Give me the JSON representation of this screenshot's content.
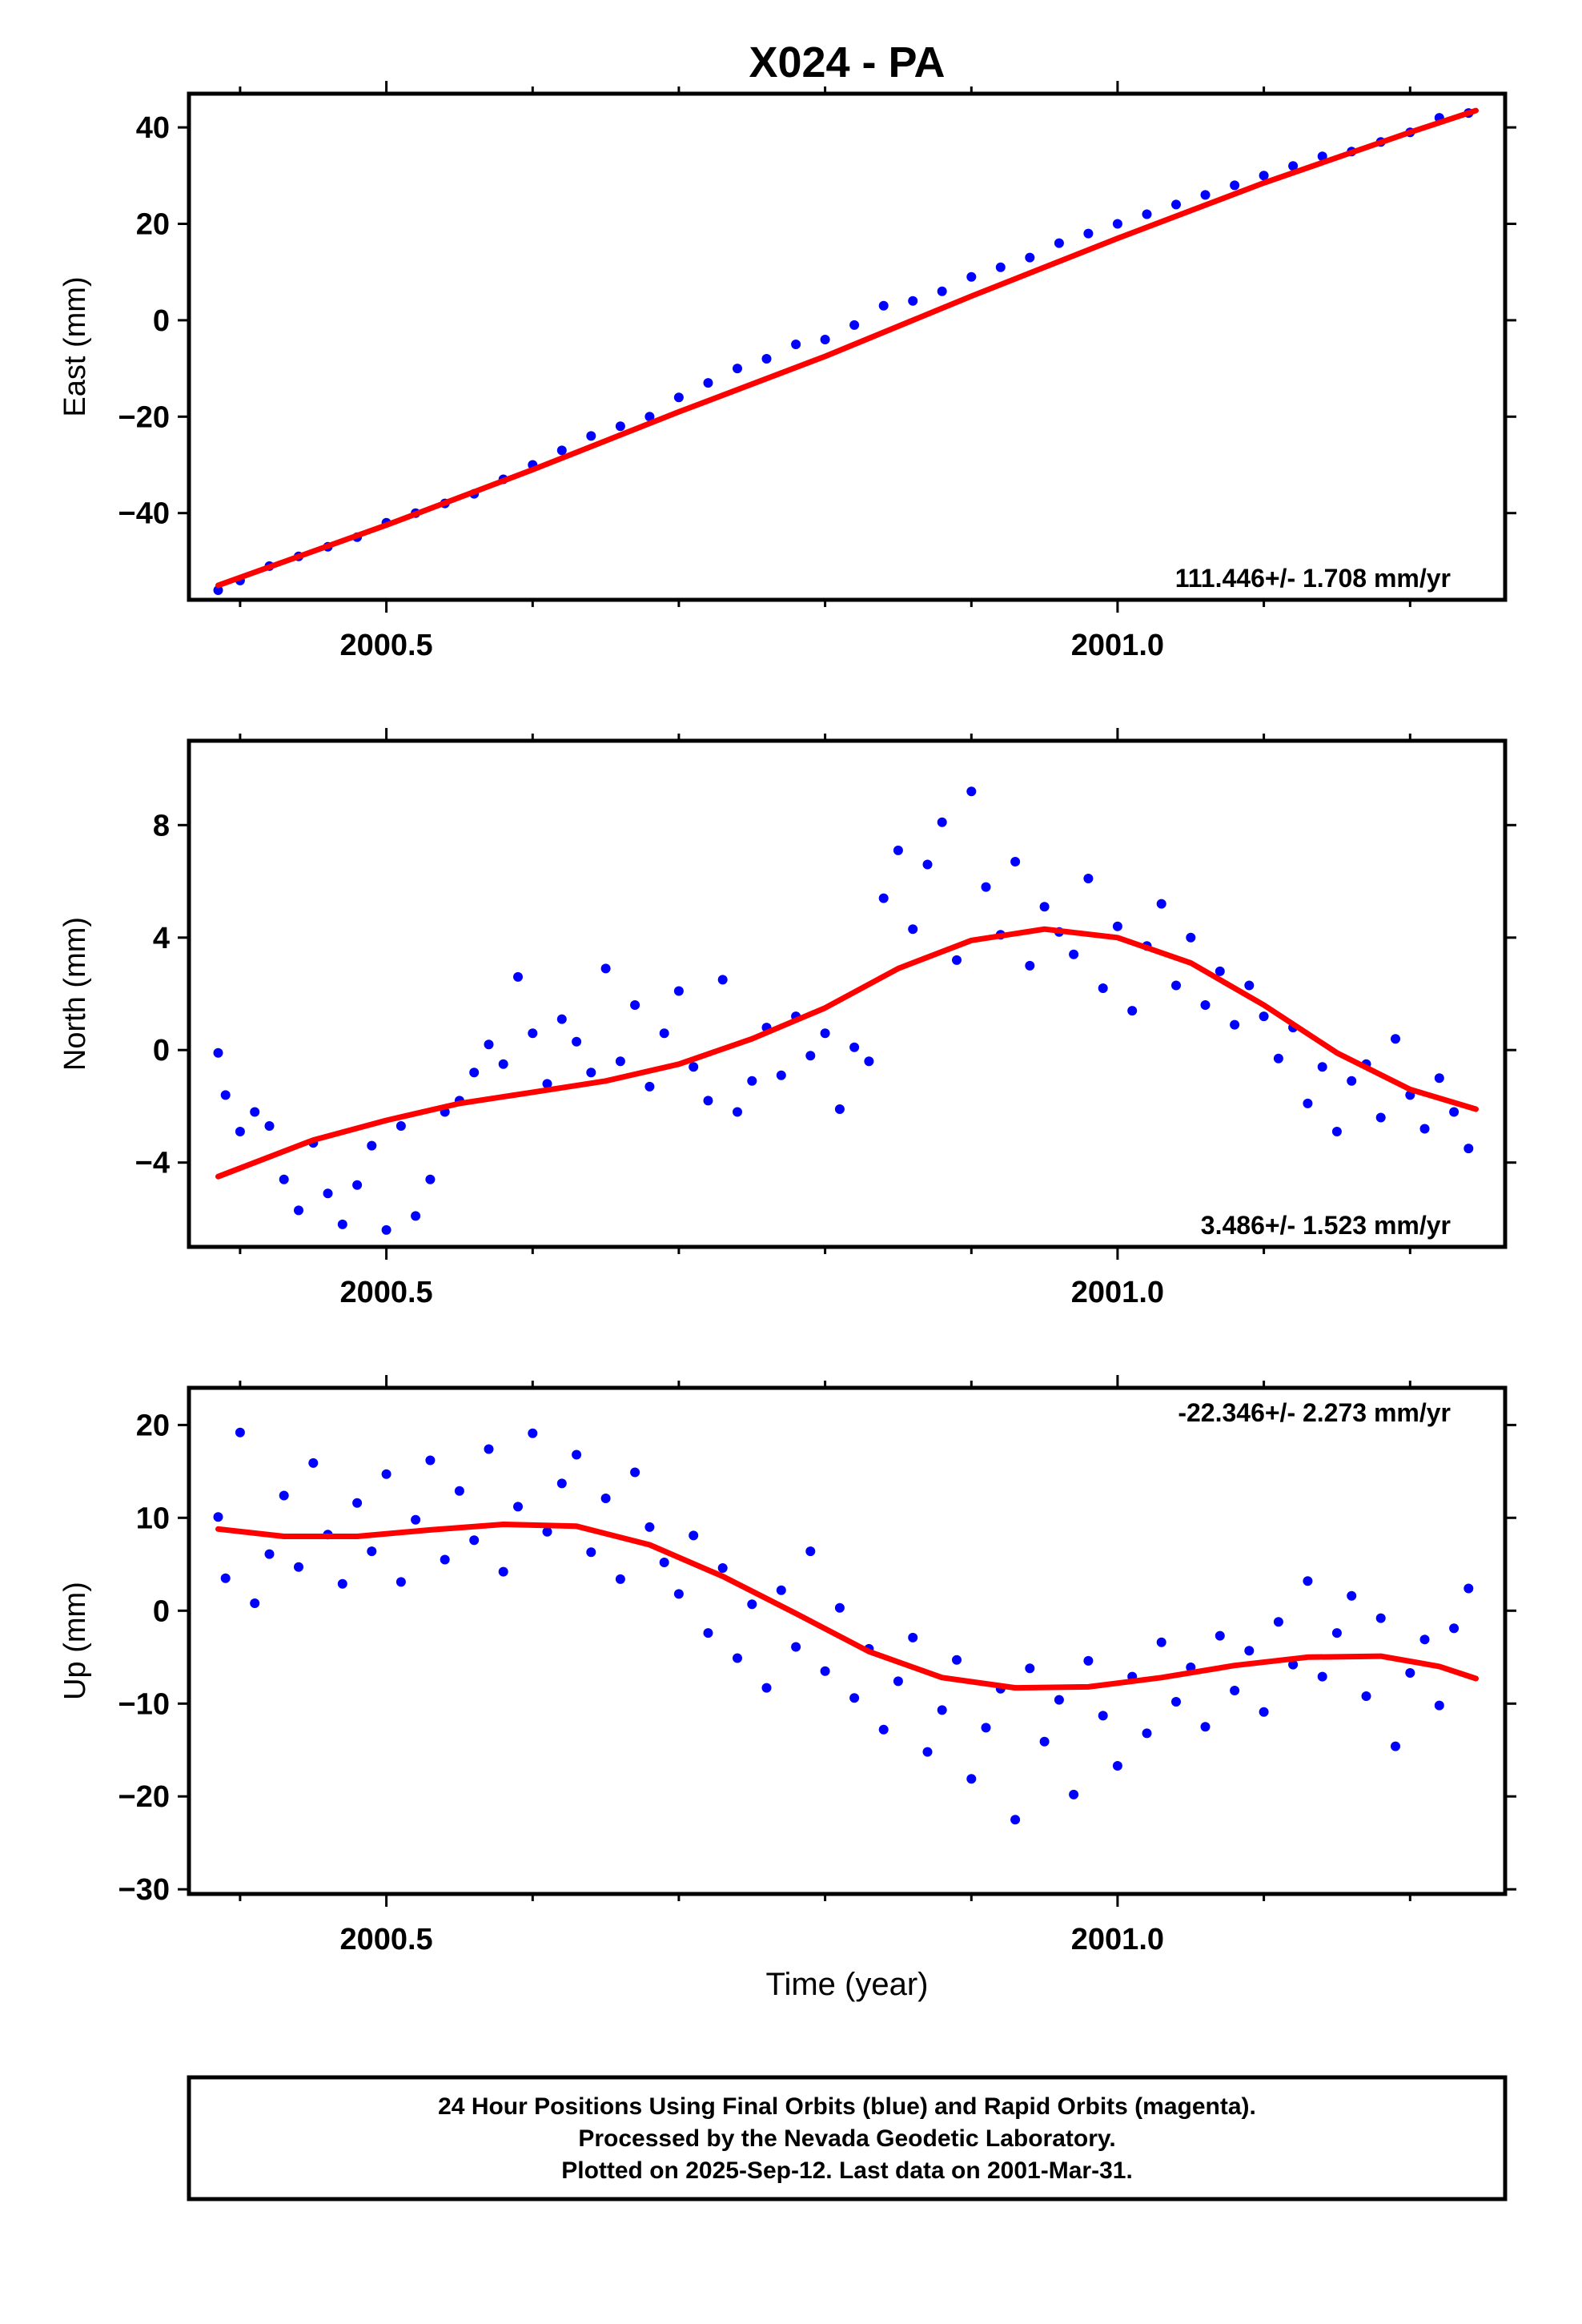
{
  "title": "X024 - PA",
  "xlabel": "Time (year)",
  "footer": {
    "line1": "24 Hour Positions Using Final Orbits (blue) and Rapid Orbits (magenta).",
    "line2": "Processed by the Nevada Geodetic Laboratory.",
    "line3": "Plotted on 2025-Sep-12. Last data on 2001-Mar-31."
  },
  "colors": {
    "points": "#0000ff",
    "fit": "#ff0000",
    "axis": "#000000"
  },
  "chart_data": [
    {
      "type": "scatter",
      "component": "East",
      "ylabel": "East (mm)",
      "rate_label": "111.446+/- 1.708 mm/yr",
      "xlim": [
        2000.365,
        2001.265
      ],
      "ylim": [
        -58,
        47
      ],
      "xticks": [
        2000.5,
        2001.0
      ],
      "yticks": [
        -40,
        -20,
        0,
        20,
        40
      ],
      "grid": false,
      "fit_curve": {
        "x": [
          2000.385,
          2000.5,
          2000.6,
          2000.7,
          2000.8,
          2000.9,
          2001.0,
          2001.1,
          2001.2,
          2001.245
        ],
        "y": [
          -55,
          -42.5,
          -31,
          -19,
          -7.5,
          5,
          17,
          28.5,
          39,
          43.5
        ]
      },
      "sample_points": {
        "x": [
          2000.385,
          2000.4,
          2000.42,
          2000.44,
          2000.46,
          2000.48,
          2000.5,
          2000.52,
          2000.54,
          2000.56,
          2000.58,
          2000.6,
          2000.62,
          2000.64,
          2000.66,
          2000.68,
          2000.7,
          2000.72,
          2000.74,
          2000.76,
          2000.78,
          2000.8,
          2000.82,
          2000.84,
          2000.86,
          2000.88,
          2000.9,
          2000.92,
          2000.94,
          2000.96,
          2000.98,
          2001.0,
          2001.02,
          2001.04,
          2001.06,
          2001.08,
          2001.1,
          2001.12,
          2001.14,
          2001.16,
          2001.18,
          2001.2,
          2001.22,
          2001.24
        ],
        "y": [
          -56,
          -54,
          -51,
          -49,
          -47,
          -45,
          -42,
          -40,
          -38,
          -36,
          -33,
          -30,
          -27,
          -24,
          -22,
          -20,
          -16,
          -13,
          -10,
          -8,
          -5,
          -4,
          -1,
          3,
          4,
          6,
          9,
          11,
          13,
          16,
          18,
          20,
          22,
          24,
          26,
          28,
          30,
          32,
          34,
          35,
          37,
          39,
          42,
          43
        ]
      }
    },
    {
      "type": "scatter",
      "component": "North",
      "ylabel": "North (mm)",
      "rate_label": "3.486+/- 1.523 mm/yr",
      "xlim": [
        2000.365,
        2001.265
      ],
      "ylim": [
        -7,
        11
      ],
      "xticks": [
        2000.5,
        2001.0
      ],
      "yticks": [
        -4,
        0,
        4,
        8
      ],
      "grid": false,
      "fit_curve": {
        "x": [
          2000.385,
          2000.45,
          2000.5,
          2000.55,
          2000.6,
          2000.65,
          2000.7,
          2000.75,
          2000.8,
          2000.85,
          2000.9,
          2000.95,
          2001.0,
          2001.05,
          2001.1,
          2001.15,
          2001.2,
          2001.245
        ],
        "y": [
          -4.5,
          -3.2,
          -2.5,
          -1.9,
          -1.5,
          -1.1,
          -0.5,
          0.4,
          1.5,
          2.9,
          3.9,
          4.3,
          4.0,
          3.1,
          1.6,
          -0.1,
          -1.4,
          -2.1
        ]
      },
      "sample_points": {
        "x": [
          2000.385,
          2000.39,
          2000.4,
          2000.41,
          2000.42,
          2000.43,
          2000.44,
          2000.45,
          2000.46,
          2000.47,
          2000.48,
          2000.49,
          2000.5,
          2000.51,
          2000.52,
          2000.53,
          2000.54,
          2000.55,
          2000.56,
          2000.57,
          2000.58,
          2000.59,
          2000.6,
          2000.61,
          2000.62,
          2000.63,
          2000.64,
          2000.65,
          2000.66,
          2000.67,
          2000.68,
          2000.69,
          2000.7,
          2000.71,
          2000.72,
          2000.73,
          2000.74,
          2000.75,
          2000.76,
          2000.77,
          2000.78,
          2000.79,
          2000.8,
          2000.81,
          2000.82,
          2000.83,
          2000.84,
          2000.85,
          2000.86,
          2000.87,
          2000.88,
          2000.89,
          2000.9,
          2000.91,
          2000.92,
          2000.93,
          2000.94,
          2000.95,
          2000.96,
          2000.97,
          2000.98,
          2000.99,
          2001.0,
          2001.01,
          2001.02,
          2001.03,
          2001.04,
          2001.05,
          2001.06,
          2001.07,
          2001.08,
          2001.09,
          2001.1,
          2001.11,
          2001.12,
          2001.13,
          2001.14,
          2001.15,
          2001.16,
          2001.17,
          2001.18,
          2001.19,
          2001.2,
          2001.21,
          2001.22,
          2001.23,
          2001.24
        ],
        "y": [
          -0.1,
          -1.6,
          -2.9,
          -2.2,
          -2.7,
          -4.6,
          -5.7,
          -3.3,
          -5.1,
          -6.2,
          -4.8,
          -3.4,
          -6.4,
          -2.7,
          -5.9,
          -4.6,
          -2.2,
          -1.8,
          -0.8,
          0.2,
          -0.5,
          2.6,
          0.6,
          -1.2,
          1.1,
          0.3,
          -0.8,
          2.9,
          -0.4,
          1.6,
          -1.3,
          0.6,
          2.1,
          -0.6,
          -1.8,
          2.5,
          -2.2,
          -1.1,
          0.8,
          -0.9,
          1.2,
          -0.2,
          0.6,
          -2.1,
          0.1,
          -0.4,
          5.4,
          7.1,
          4.3,
          6.6,
          8.1,
          3.2,
          9.2,
          5.8,
          4.1,
          6.7,
          3.0,
          5.1,
          4.2,
          3.4,
          6.1,
          2.2,
          4.4,
          1.4,
          3.7,
          5.2,
          2.3,
          4.0,
          1.6,
          2.8,
          0.9,
          2.3,
          1.2,
          -0.3,
          0.8,
          -1.9,
          -0.6,
          -2.9,
          -1.1,
          -0.5,
          -2.4,
          0.4,
          -1.6,
          -2.8,
          -1.0,
          -2.2,
          -3.5
        ]
      }
    },
    {
      "type": "scatter",
      "component": "Up",
      "ylabel": "Up (mm)",
      "rate_label": "-22.346+/- 2.273 mm/yr",
      "xlim": [
        2000.365,
        2001.265
      ],
      "ylim": [
        -30.5,
        24
      ],
      "xticks": [
        2000.5,
        2001.0
      ],
      "yticks": [
        -30,
        -20,
        -10,
        0,
        10,
        20
      ],
      "grid": false,
      "fit_curve": {
        "x": [
          2000.385,
          2000.43,
          2000.48,
          2000.53,
          2000.58,
          2000.63,
          2000.68,
          2000.73,
          2000.78,
          2000.83,
          2000.88,
          2000.93,
          2000.98,
          2001.03,
          2001.08,
          2001.13,
          2001.18,
          2001.22,
          2001.245
        ],
        "y": [
          8.8,
          8.0,
          8.0,
          8.7,
          9.3,
          9.1,
          7.1,
          3.7,
          -0.3,
          -4.4,
          -7.2,
          -8.3,
          -8.2,
          -7.2,
          -5.9,
          -5.0,
          -4.9,
          -6.0,
          -7.3
        ]
      },
      "sample_points": {
        "x": [
          2000.385,
          2000.39,
          2000.4,
          2000.41,
          2000.42,
          2000.43,
          2000.44,
          2000.45,
          2000.46,
          2000.47,
          2000.48,
          2000.49,
          2000.5,
          2000.51,
          2000.52,
          2000.53,
          2000.54,
          2000.55,
          2000.56,
          2000.57,
          2000.58,
          2000.59,
          2000.6,
          2000.61,
          2000.62,
          2000.63,
          2000.64,
          2000.65,
          2000.66,
          2000.67,
          2000.68,
          2000.69,
          2000.7,
          2000.71,
          2000.72,
          2000.73,
          2000.74,
          2000.75,
          2000.76,
          2000.77,
          2000.78,
          2000.79,
          2000.8,
          2000.81,
          2000.82,
          2000.83,
          2000.84,
          2000.85,
          2000.86,
          2000.87,
          2000.88,
          2000.89,
          2000.9,
          2000.91,
          2000.92,
          2000.93,
          2000.94,
          2000.95,
          2000.96,
          2000.97,
          2000.98,
          2000.99,
          2001.0,
          2001.01,
          2001.02,
          2001.03,
          2001.04,
          2001.05,
          2001.06,
          2001.07,
          2001.08,
          2001.09,
          2001.1,
          2001.11,
          2001.12,
          2001.13,
          2001.14,
          2001.15,
          2001.16,
          2001.17,
          2001.18,
          2001.19,
          2001.2,
          2001.21,
          2001.22,
          2001.23,
          2001.24
        ],
        "y": [
          10.1,
          3.5,
          19.2,
          0.8,
          6.1,
          12.4,
          4.7,
          15.9,
          8.2,
          2.9,
          11.6,
          6.4,
          14.7,
          3.1,
          9.8,
          16.2,
          5.5,
          12.9,
          7.6,
          17.4,
          4.2,
          11.2,
          19.1,
          8.5,
          13.7,
          16.8,
          6.3,
          12.1,
          3.4,
          14.9,
          9.0,
          5.2,
          1.8,
          8.1,
          -2.4,
          4.6,
          -5.1,
          0.7,
          -8.3,
          2.2,
          -3.9,
          6.4,
          -6.5,
          0.3,
          -9.4,
          -4.1,
          -12.8,
          -7.6,
          -2.9,
          -15.2,
          -10.7,
          -5.3,
          -18.1,
          -12.6,
          -8.4,
          -22.5,
          -6.2,
          -14.1,
          -9.6,
          -19.8,
          -5.4,
          -11.3,
          -16.7,
          -7.1,
          -13.2,
          -3.4,
          -9.8,
          -6.1,
          -12.5,
          -2.7,
          -8.6,
          -4.3,
          -10.9,
          -1.2,
          -5.8,
          3.2,
          -7.1,
          -2.4,
          1.6,
          -9.2,
          -0.8,
          -14.6,
          -6.7,
          -3.1,
          -10.2,
          -1.9,
          2.4
        ]
      }
    }
  ]
}
